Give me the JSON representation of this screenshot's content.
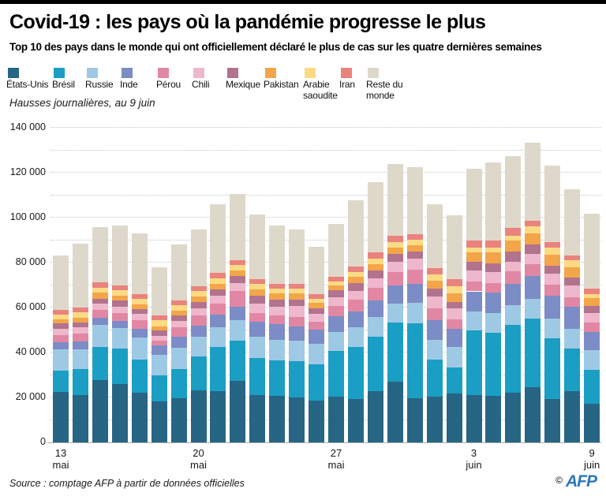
{
  "header": {
    "title": "Covid-19 : les pays où la pandémie progresse le plus",
    "subtitle": "Top 10 des pays dans le monde qui ont officiellement déclaré le plus de cas sur les quatre dernières semaines"
  },
  "note": "Hausses journalières, au 9 juin",
  "footer": {
    "source": "Source : comptage AFP à partir de données officielles",
    "copyright": "©",
    "logo": "AFP"
  },
  "colors": {
    "axis_text": "#1a1a1a",
    "gridline": "#c4c4c4",
    "afp_blue": "#2e77bb",
    "top_bar": "#000000"
  },
  "chart_data": {
    "type": "bar",
    "stacked": true,
    "title": "Hausses journalières, au 9 juin",
    "xlabel": "",
    "ylabel": "",
    "ylim": [
      0,
      140000
    ],
    "grid": "dotted horizontal every 10000",
    "legend_position": "top",
    "y_tick_labels": [
      "0",
      "20 000",
      "40 000",
      "60 000",
      "80 000",
      "100 000",
      "120 000",
      "140 000"
    ],
    "x": [
      "13 mai",
      "14 mai",
      "15 mai",
      "16 mai",
      "17 mai",
      "18 mai",
      "19 mai",
      "20 mai",
      "21 mai",
      "22 mai",
      "23 mai",
      "24 mai",
      "25 mai",
      "26 mai",
      "27 mai",
      "28 mai",
      "29 mai",
      "30 mai",
      "31 mai",
      "1 juin",
      "2 juin",
      "3 juin",
      "4 juin",
      "5 juin",
      "6 juin",
      "7 juin",
      "8 juin",
      "9 juin"
    ],
    "x_axis_labels": [
      {
        "index": 0,
        "line1": "13",
        "line2": "mai"
      },
      {
        "index": 7,
        "line1": "20",
        "line2": "mai"
      },
      {
        "index": 14,
        "line1": "27",
        "line2": "mai"
      },
      {
        "index": 21,
        "line1": "3",
        "line2": "juin"
      },
      {
        "index": 27,
        "line1": "9",
        "line2": "juin"
      }
    ],
    "series": [
      {
        "name": "États-Unis",
        "color": "#276584",
        "values": [
          22600,
          21200,
          27800,
          25800,
          22000,
          18200,
          19700,
          23300,
          22900,
          27200,
          21000,
          20800,
          19900,
          18700,
          20200,
          19300,
          22800,
          27000,
          19700,
          20300,
          21900,
          20900,
          20800,
          22000,
          24500,
          19400,
          22900,
          17100
        ]
      },
      {
        "name": "Brésil",
        "color": "#1b9ec4",
        "values": [
          9300,
          11500,
          14500,
          15900,
          14900,
          11700,
          13100,
          14800,
          19600,
          18000,
          16500,
          15800,
          16300,
          16100,
          20600,
          23000,
          24200,
          26300,
          33300,
          16400,
          11600,
          28900,
          27900,
          30200,
          30600,
          27000,
          18800,
          15300
        ]
      },
      {
        "name": "Russie",
        "color": "#9ec9e4",
        "values": [
          9600,
          8800,
          10100,
          9300,
          9700,
          8900,
          9200,
          8800,
          8900,
          9200,
          9400,
          8900,
          9000,
          8900,
          8400,
          8900,
          8900,
          8400,
          9100,
          9000,
          8900,
          8500,
          8700,
          8900,
          8900,
          8800,
          8900,
          8700
        ]
      },
      {
        "name": "Inde",
        "color": "#7c8cc6",
        "values": [
          3100,
          3500,
          2900,
          3100,
          3900,
          4200,
          4900,
          5200,
          5600,
          6100,
          6700,
          7100,
          6500,
          6400,
          6900,
          7000,
          7200,
          8000,
          8400,
          8800,
          8200,
          8900,
          9300,
          9500,
          9900,
          9900,
          9800,
          7900
        ]
      },
      {
        "name": "Pérou",
        "color": "#e287a3",
        "values": [
          3200,
          3500,
          3500,
          3500,
          4000,
          2200,
          4200,
          4500,
          4800,
          6900,
          4100,
          4000,
          4200,
          3500,
          4500,
          5300,
          5800,
          6000,
          6300,
          5000,
          4100,
          4300,
          4200,
          5700,
          5500,
          5100,
          4200,
          4400
        ]
      },
      {
        "name": "Chili",
        "color": "#eeb7cb",
        "values": [
          2900,
          2900,
          2900,
          2900,
          2700,
          2300,
          3100,
          3200,
          3300,
          3500,
          4200,
          3900,
          4900,
          3500,
          3900,
          4000,
          4200,
          4500,
          4800,
          5500,
          4900,
          4900,
          5000,
          4200,
          4500,
          4900,
          5300,
          4200
        ]
      },
      {
        "name": "Mexique",
        "color": "#b1738d",
        "values": [
          2300,
          1900,
          2300,
          2500,
          2100,
          2400,
          2200,
          2700,
          2900,
          3200,
          3300,
          3000,
          2800,
          2500,
          3200,
          3300,
          3400,
          3500,
          3200,
          3400,
          2800,
          3900,
          3900,
          4400,
          4300,
          3600,
          3500,
          3000
        ]
      },
      {
        "name": "Pakistan",
        "color": "#f3a54a",
        "values": [
          1800,
          2300,
          2500,
          2200,
          2000,
          1800,
          2100,
          2300,
          2600,
          2300,
          2800,
          2800,
          2700,
          2400,
          2100,
          2800,
          2900,
          3000,
          3000,
          3600,
          3900,
          4100,
          4700,
          4800,
          4900,
          4900,
          4600,
          3600
        ]
      },
      {
        "name": "Arabie saoudite",
        "color": "#fadb84",
        "values": [
          2200,
          2300,
          2200,
          2600,
          2400,
          2600,
          2500,
          2500,
          2400,
          2400,
          2400,
          2300,
          2200,
          1900,
          1800,
          2200,
          2400,
          2500,
          2400,
          2900,
          3200,
          2200,
          2300,
          2200,
          3000,
          3000,
          3000,
          1800
        ]
      },
      {
        "name": "Iran",
        "color": "#ea837d",
        "values": [
          2100,
          2100,
          2600,
          2000,
          2200,
          2300,
          2100,
          2300,
          2300,
          2100,
          2200,
          2100,
          2000,
          2100,
          2100,
          2300,
          2800,
          2800,
          2600,
          2800,
          3100,
          3100,
          3100,
          3600,
          2400,
          2400,
          2000,
          2500
        ]
      },
      {
        "name": "Reste du monde",
        "color": "#ded8ca",
        "values": [
          23900,
          28500,
          24400,
          26700,
          27100,
          21400,
          25100,
          25000,
          30500,
          29600,
          28900,
          25800,
          24200,
          21200,
          23400,
          29600,
          31200,
          31900,
          29600,
          28300,
          28300,
          32100,
          34500,
          31900,
          34700,
          34000,
          29800,
          33400
        ]
      }
    ]
  }
}
